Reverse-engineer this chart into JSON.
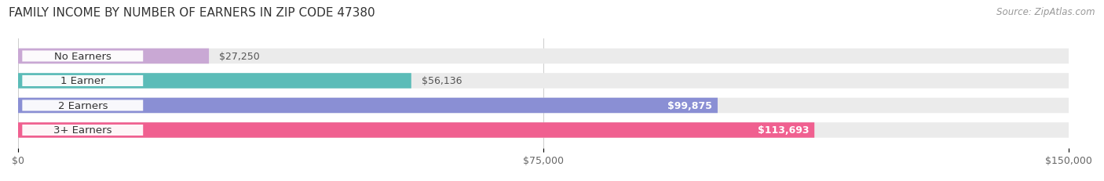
{
  "title": "FAMILY INCOME BY NUMBER OF EARNERS IN ZIP CODE 47380",
  "source": "Source: ZipAtlas.com",
  "categories": [
    "No Earners",
    "1 Earner",
    "2 Earners",
    "3+ Earners"
  ],
  "values": [
    27250,
    56136,
    99875,
    113693
  ],
  "value_labels": [
    "$27,250",
    "$56,136",
    "$99,875",
    "$113,693"
  ],
  "value_label_inside": [
    false,
    false,
    true,
    true
  ],
  "bar_colors": [
    "#c9a8d4",
    "#5bbcb8",
    "#8a8fd4",
    "#f06090"
  ],
  "bar_track_color": "#ebebeb",
  "xlim": [
    0,
    150000
  ],
  "xticks": [
    0,
    75000,
    150000
  ],
  "xtick_labels": [
    "$0",
    "$75,000",
    "$150,000"
  ],
  "background_color": "#ffffff",
  "title_fontsize": 11,
  "label_fontsize": 9.5,
  "value_fontsize": 9.0,
  "bar_height": 0.62,
  "bar_gap": 1.0,
  "figsize": [
    14.06,
    2.32
  ]
}
